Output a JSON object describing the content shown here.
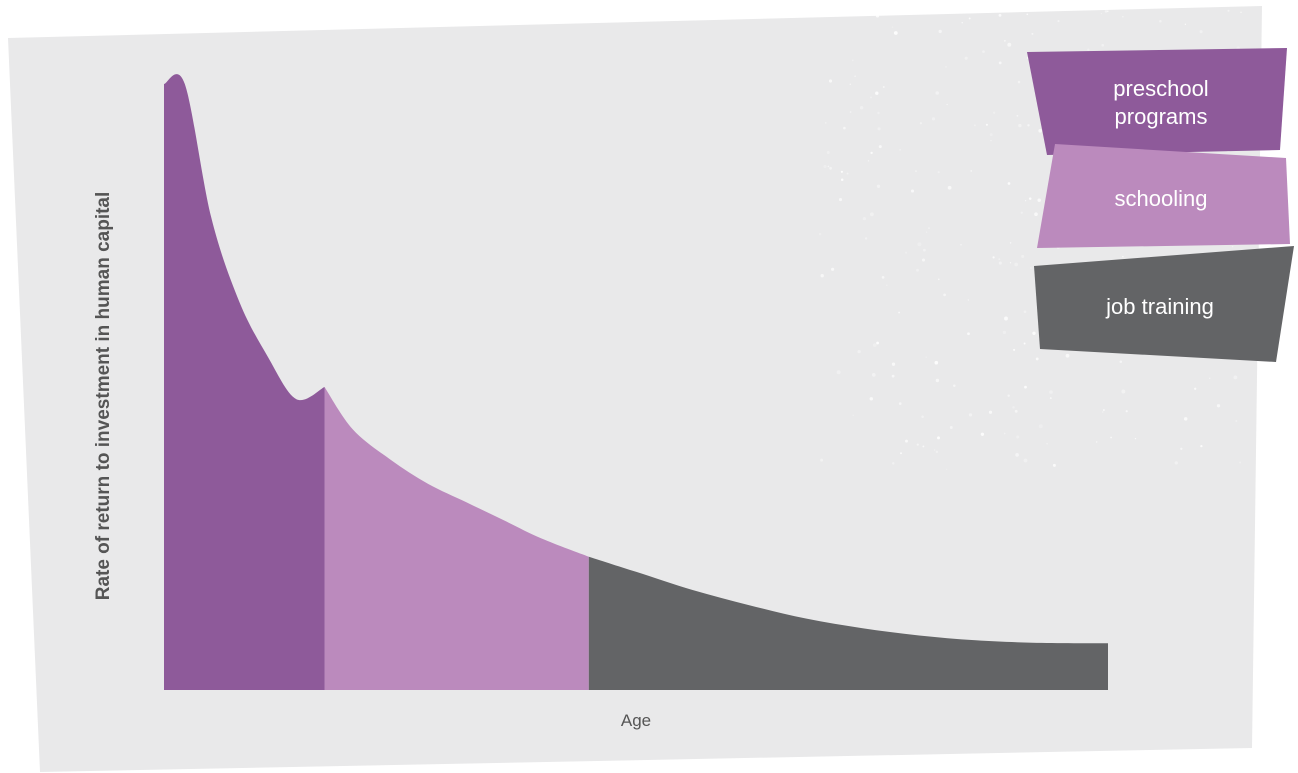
{
  "chart_data": {
    "type": "area",
    "xlabel": "Age",
    "ylabel": "Rate of return to investment in human capital",
    "x_range": [
      0,
      100
    ],
    "y_range": [
      0,
      100
    ],
    "grid": false,
    "legend_placement": "top-right",
    "series": [
      {
        "name": "preschool programs",
        "color": "#8e5a9a",
        "x": [
          0,
          2.2,
          5,
          8,
          11,
          14,
          17
        ],
        "y": [
          100,
          100,
          78,
          64,
          55,
          48,
          50
        ]
      },
      {
        "name": "schooling",
        "color": "#bb8abd",
        "x": [
          17,
          20,
          24,
          28,
          32,
          36,
          40,
          45
        ],
        "y": [
          50,
          43,
          38,
          34,
          31,
          28,
          25,
          22
        ]
      },
      {
        "name": "job training",
        "color": "#636466",
        "x": [
          45,
          50,
          56,
          62,
          68,
          74,
          80,
          86,
          92,
          100
        ],
        "y": [
          22,
          19.5,
          16.5,
          14,
          11.8,
          10.2,
          9,
          8.2,
          7.8,
          7.7
        ]
      }
    ]
  },
  "legend": {
    "items": [
      {
        "label_lines": [
          "preschool",
          "programs"
        ],
        "color": "#8e5a9a"
      },
      {
        "label_lines": [
          "schooling"
        ],
        "color": "#bb8abd"
      },
      {
        "label_lines": [
          "job training"
        ],
        "color": "#636466"
      }
    ]
  },
  "colors": {
    "background": "#e9e9ea",
    "axis_text": "#555555"
  }
}
